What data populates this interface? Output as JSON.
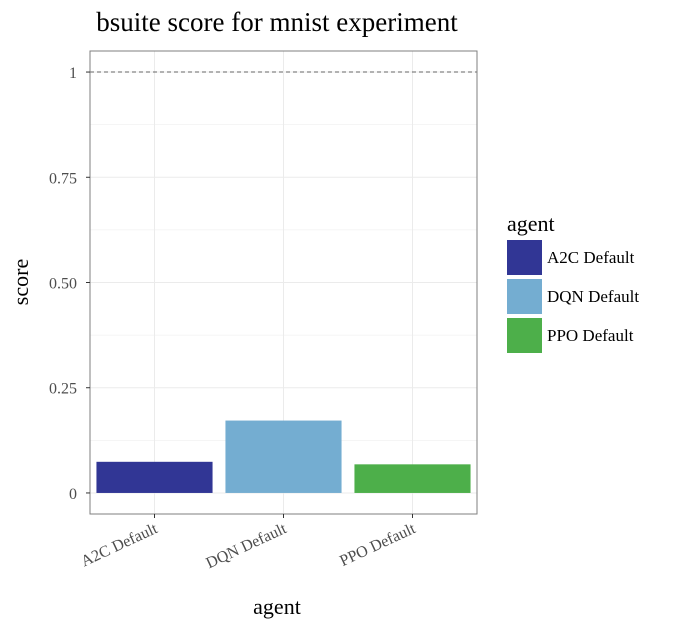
{
  "chart_data": {
    "type": "bar",
    "title": "bsuite score for mnist experiment",
    "xlabel": "agent",
    "ylabel": "score",
    "categories": [
      "A2C Default",
      "DQN Default",
      "PPO Default"
    ],
    "values": [
      0.074,
      0.172,
      0.068
    ],
    "colors": [
      "#313695",
      "#74add1",
      "#4daf4a"
    ],
    "ylim": [
      -0.05,
      1.05
    ],
    "yticks": [
      0,
      0.25,
      0.5,
      0.75,
      1
    ],
    "ytick_labels": [
      "0",
      "0.25",
      "0.50",
      "0.75",
      "1"
    ],
    "reference_line": 1,
    "grid": true,
    "legend": {
      "title": "agent",
      "placement": "right",
      "entries": [
        "A2C Default",
        "DQN Default",
        "PPO Default"
      ]
    }
  }
}
